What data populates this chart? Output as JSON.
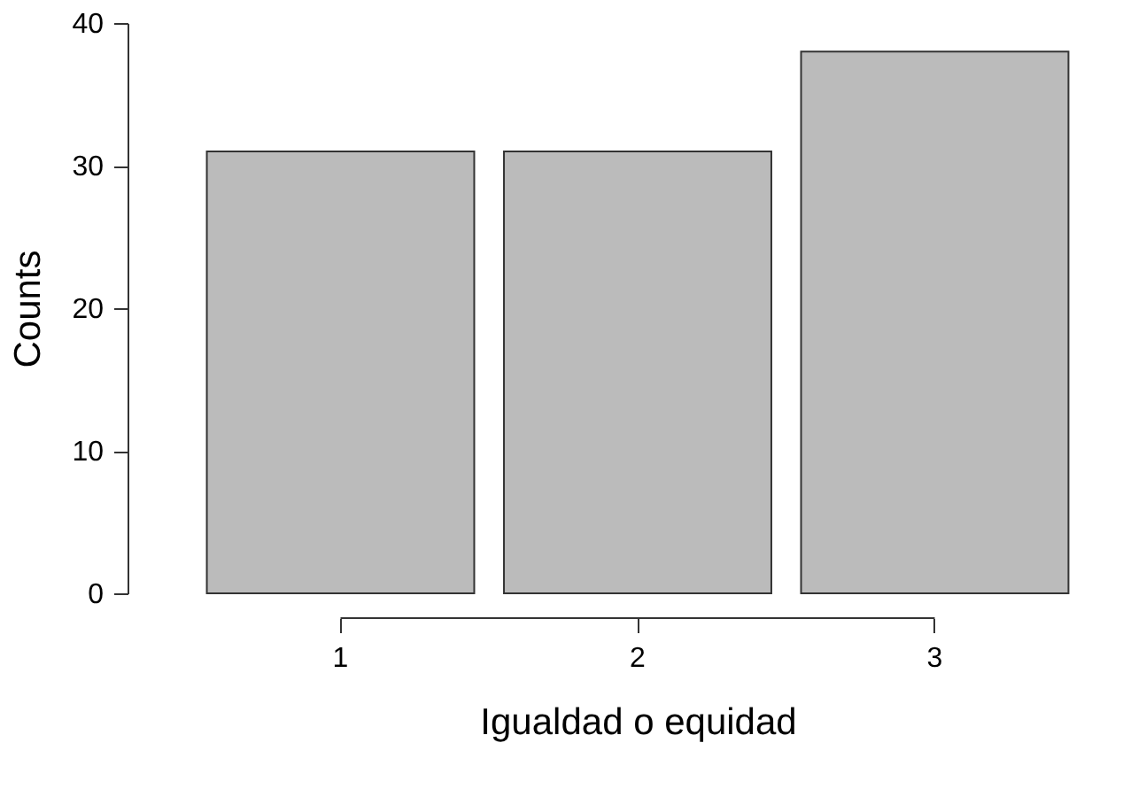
{
  "chart_data": {
    "type": "bar",
    "xlabel": "Igualdad o equidad",
    "ylabel": "Counts",
    "categories": [
      "1",
      "2",
      "3"
    ],
    "values": [
      31,
      31,
      38
    ],
    "color": "#bbbbbb",
    "ylim": [
      0,
      40
    ],
    "yticks": [
      0,
      10,
      20,
      30,
      40
    ],
    "grid": false
  }
}
